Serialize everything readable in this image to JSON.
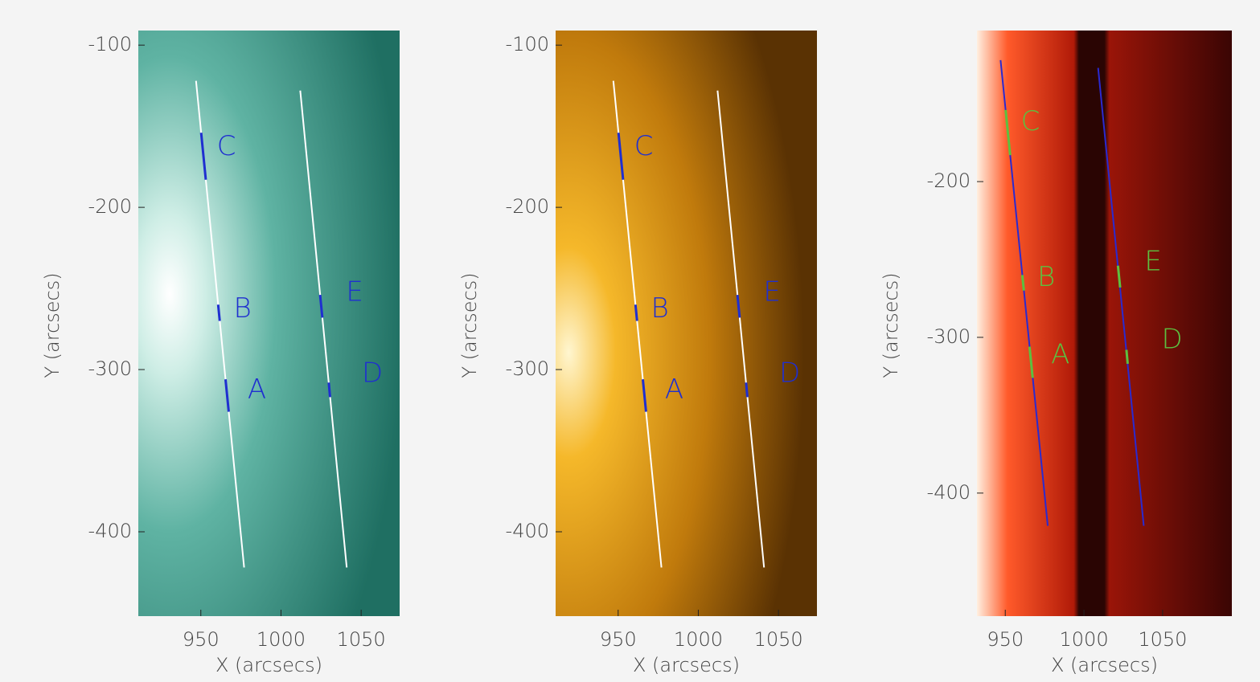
{
  "chart_data": [
    {
      "type": "image",
      "xlabel": "X (arcsecs)",
      "ylabel": "Y (arcsecs)",
      "xlim": [
        911,
        1074
      ],
      "ylim": [
        -452,
        -91
      ],
      "xticks": [
        950,
        1000,
        1050
      ],
      "yticks": [
        -100,
        -200,
        -300,
        -400
      ],
      "line_color": "#ffffff",
      "marker_color": "#1f2fd0",
      "lines": [
        {
          "x": [
            947,
            977
          ],
          "y": [
            -122,
            -422
          ]
        },
        {
          "x": [
            1012,
            1041
          ],
          "y": [
            -128,
            -422
          ]
        }
      ],
      "segments": [
        {
          "x": [
            950.2,
            953.1
          ],
          "y": [
            -154,
            -183
          ]
        },
        {
          "x": [
            960.8,
            961.8
          ],
          "y": [
            -260,
            -270
          ]
        },
        {
          "x": [
            965.4,
            967.4
          ],
          "y": [
            -306,
            -326
          ]
        },
        {
          "x": [
            1024.4,
            1025.8
          ],
          "y": [
            -254,
            -268
          ]
        },
        {
          "x": [
            1029.8,
            1030.6
          ],
          "y": [
            -308,
            -317
          ]
        }
      ],
      "annotations": [
        {
          "text": "C",
          "x": 966,
          "y": -163
        },
        {
          "text": "B",
          "x": 976,
          "y": -263
        },
        {
          "text": "A",
          "x": 985,
          "y": -313
        },
        {
          "text": "E",
          "x": 1046,
          "y": -253
        },
        {
          "text": "D",
          "x": 1057,
          "y": -303
        }
      ]
    },
    {
      "type": "image",
      "xlabel": "X (arcsecs)",
      "ylabel": "Y (arcsecs)",
      "xlim": [
        911,
        1074
      ],
      "ylim": [
        -452,
        -91
      ],
      "xticks": [
        950,
        1000,
        1050
      ],
      "yticks": [
        -100,
        -200,
        -300,
        -400
      ],
      "line_color": "#ffffff",
      "marker_color": "#1f2fd0",
      "lines": [
        {
          "x": [
            947,
            977
          ],
          "y": [
            -122,
            -422
          ]
        },
        {
          "x": [
            1012,
            1041
          ],
          "y": [
            -128,
            -422
          ]
        }
      ],
      "segments": [
        {
          "x": [
            950.2,
            953.1
          ],
          "y": [
            -154,
            -183
          ]
        },
        {
          "x": [
            960.8,
            961.8
          ],
          "y": [
            -260,
            -270
          ]
        },
        {
          "x": [
            965.4,
            967.4
          ],
          "y": [
            -306,
            -326
          ]
        },
        {
          "x": [
            1024.4,
            1025.8
          ],
          "y": [
            -254,
            -268
          ]
        },
        {
          "x": [
            1029.8,
            1030.6
          ],
          "y": [
            -308,
            -317
          ]
        }
      ],
      "annotations": [
        {
          "text": "C",
          "x": 966,
          "y": -163
        },
        {
          "text": "B",
          "x": 976,
          "y": -263
        },
        {
          "text": "A",
          "x": 985,
          "y": -313
        },
        {
          "text": "E",
          "x": 1046,
          "y": -253
        },
        {
          "text": "D",
          "x": 1057,
          "y": -303
        }
      ]
    },
    {
      "type": "image",
      "xlabel": "X (arcsecs)",
      "ylabel": "Y (arcsecs)",
      "xlim": [
        932,
        1094
      ],
      "ylim": [
        -479,
        -103
      ],
      "xticks": [
        950,
        1000,
        1050
      ],
      "yticks": [
        -200,
        -300,
        -400
      ],
      "line_color": "#2a2ad0",
      "marker_color": "#5cc040",
      "lines": [
        {
          "x": [
            947,
            977
          ],
          "y": [
            -122,
            -421
          ]
        },
        {
          "x": [
            1009,
            1038
          ],
          "y": [
            -127,
            -421
          ]
        }
      ],
      "segments": [
        {
          "x": [
            950.2,
            953.1
          ],
          "y": [
            -154,
            -183
          ]
        },
        {
          "x": [
            960.8,
            961.8
          ],
          "y": [
            -260,
            -270
          ]
        },
        {
          "x": [
            965.4,
            967.4
          ],
          "y": [
            -306,
            -326
          ]
        },
        {
          "x": [
            1021.6,
            1023
          ],
          "y": [
            -254,
            -268
          ]
        },
        {
          "x": [
            1027,
            1027.8
          ],
          "y": [
            -308,
            -317
          ]
        }
      ],
      "annotations": [
        {
          "text": "C",
          "x": 966,
          "y": -162
        },
        {
          "text": "B",
          "x": 976,
          "y": -262
        },
        {
          "text": "A",
          "x": 985,
          "y": -312
        },
        {
          "text": "E",
          "x": 1044,
          "y": -252
        },
        {
          "text": "D",
          "x": 1056,
          "y": -302
        }
      ]
    }
  ]
}
